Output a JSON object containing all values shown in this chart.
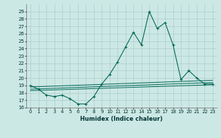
{
  "xlabel": "Humidex (Indice chaleur)",
  "ylabel": "",
  "bg_color": "#cce8e4",
  "line_color": "#006655",
  "grid_color": "#aacccc",
  "xlim": [
    -0.5,
    23.5
  ],
  "ylim": [
    16,
    30
  ],
  "yticks": [
    16,
    17,
    18,
    19,
    20,
    21,
    22,
    23,
    24,
    25,
    26,
    27,
    28,
    29
  ],
  "xticks": [
    0,
    1,
    2,
    3,
    4,
    5,
    6,
    7,
    8,
    9,
    10,
    11,
    12,
    13,
    14,
    15,
    16,
    17,
    18,
    19,
    20,
    21,
    22,
    23
  ],
  "main_line_x": [
    0,
    1,
    2,
    3,
    4,
    5,
    6,
    7,
    8,
    9,
    10,
    11,
    12,
    13,
    14,
    15,
    16,
    17,
    18,
    19,
    20,
    21,
    22,
    23
  ],
  "main_line_y": [
    19.0,
    18.5,
    17.7,
    17.5,
    17.7,
    17.2,
    16.5,
    16.5,
    17.5,
    19.2,
    20.5,
    22.2,
    24.2,
    26.2,
    24.5,
    29.0,
    26.7,
    27.5,
    24.5,
    19.8,
    21.0,
    20.0,
    19.2,
    19.2
  ],
  "reg_line1_x": [
    0,
    23
  ],
  "reg_line1_y": [
    18.8,
    19.7
  ],
  "reg_line2_x": [
    0,
    23
  ],
  "reg_line2_y": [
    18.5,
    19.4
  ],
  "reg_line3_x": [
    0,
    23
  ],
  "reg_line3_y": [
    18.3,
    19.1
  ]
}
